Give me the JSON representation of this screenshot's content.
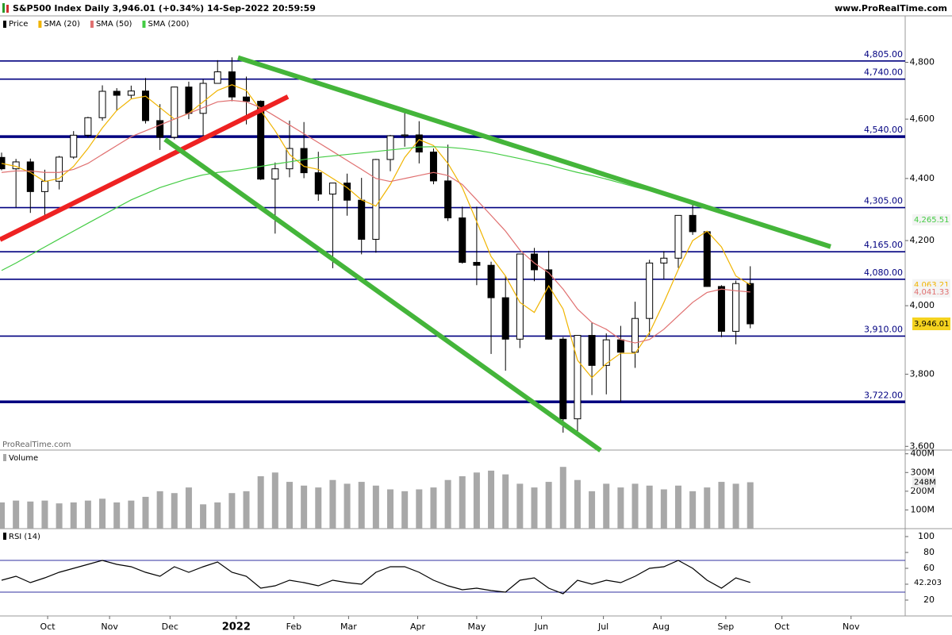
{
  "header": {
    "title": "S&P500 Index Daily 3,946.01 (+0.34%) 14-Sep-2022 20:59:59",
    "site": "www.ProRealTime.com"
  },
  "chart_data": [
    {
      "type": "candlestick",
      "log_scale": true,
      "watermark": "ProRealTime.com",
      "x": [
        0,
        1,
        2,
        3,
        4,
        5,
        6,
        7,
        8,
        9,
        10,
        11,
        12,
        13,
        14,
        15,
        16,
        17,
        18,
        19,
        20,
        21,
        22,
        23,
        24,
        25,
        26,
        27,
        28,
        29,
        30,
        31,
        32,
        33,
        34,
        35,
        36,
        37,
        38,
        39,
        40,
        41,
        42,
        43,
        44,
        45,
        46,
        47,
        48,
        49,
        50,
        51,
        52
      ],
      "xlim": [
        -0.11,
        62.76
      ],
      "ylim": [
        3590,
        4970
      ],
      "yticks": [
        {
          "value": 3600,
          "label": "3,600"
        },
        {
          "value": 3800,
          "label": "3,800"
        },
        {
          "value": 4000,
          "label": "4,000"
        },
        {
          "value": 4200,
          "label": "4,200"
        },
        {
          "value": 4400,
          "label": "4,400"
        },
        {
          "value": 4600,
          "label": "4,600"
        },
        {
          "value": 4800,
          "label": "4,800"
        }
      ],
      "series": [
        {
          "name": "Price",
          "color": "#000000",
          "last_label": "3,946.01",
          "open": [
            4470,
            4432,
            4455,
            4357,
            4391,
            4471,
            4545,
            4605,
            4697,
            4683,
            4698,
            4595,
            4538,
            4712,
            4620,
            4725,
            4766,
            4677,
            4662,
            4398,
            4432,
            4500,
            4419,
            4349,
            4385,
            4329,
            4204,
            4463,
            4543,
            4546,
            4488,
            4392,
            4272,
            4132,
            4123,
            4024,
            3901,
            4158,
            4109,
            3901,
            3675,
            3912,
            3825,
            3899,
            3863,
            3962,
            4130,
            4145,
            4280,
            4228,
            4058,
            3924,
            4067
          ],
          "high": [
            4486,
            4465,
            4466,
            4429,
            4475,
            4559,
            4608,
            4718,
            4708,
            4717,
            4744,
            4652,
            4713,
            4731,
            4740,
            4808,
            4818,
            4749,
            4665,
            4453,
            4595,
            4590,
            4489,
            4385,
            4416,
            4402,
            4465,
            4546,
            4637,
            4593,
            4500,
            4513,
            4308,
            4308,
            4134,
            4090,
            4158,
            4177,
            4168,
            3907,
            3913,
            3950,
            3918,
            3940,
            4012,
            4140,
            4167,
            4280,
            4325,
            4230,
            4062,
            4076,
            4120
          ],
          "low": [
            4427,
            4306,
            4288,
            4278,
            4364,
            4465,
            4537,
            4595,
            4630,
            4672,
            4585,
            4495,
            4531,
            4600,
            4532,
            4725,
            4662,
            4582,
            4395,
            4222,
            4404,
            4401,
            4327,
            4114,
            4279,
            4157,
            4162,
            4424,
            4506,
            4450,
            4381,
            4262,
            4128,
            4062,
            3858,
            3810,
            3875,
            4074,
            3900,
            3637,
            3640,
            3741,
            3743,
            3722,
            3818,
            3913,
            4080,
            4115,
            4218,
            4057,
            3907,
            3886,
            3933
          ],
          "close": [
            4432,
            4455,
            4357,
            4391,
            4471,
            4545,
            4605,
            4697,
            4683,
            4698,
            4595,
            4538,
            4712,
            4620,
            4725,
            4766,
            4677,
            4662,
            4398,
            4432,
            4500,
            4419,
            4349,
            4385,
            4329,
            4204,
            4463,
            4543,
            4546,
            4488,
            4392,
            4272,
            4132,
            4123,
            4024,
            3901,
            4158,
            4109,
            3901,
            3675,
            3912,
            3825,
            3899,
            3863,
            3962,
            4130,
            4145,
            4280,
            4228,
            4058,
            3924,
            4067,
            3946
          ]
        },
        {
          "name": "SMA (20)",
          "color": "#f0b400",
          "last_label": "4,063.21",
          "values": [
            4450,
            4440,
            4420,
            4390,
            4400,
            4440,
            4500,
            4570,
            4630,
            4670,
            4680,
            4640,
            4600,
            4620,
            4660,
            4700,
            4720,
            4700,
            4630,
            4560,
            4480,
            4440,
            4430,
            4400,
            4370,
            4330,
            4310,
            4380,
            4470,
            4530,
            4510,
            4450,
            4370,
            4260,
            4150,
            4090,
            4010,
            3980,
            4060,
            3990,
            3840,
            3790,
            3830,
            3860,
            3860,
            3920,
            4010,
            4110,
            4200,
            4230,
            4180,
            4090,
            4063.21
          ]
        },
        {
          "name": "SMA (50)",
          "color": "#e07070",
          "last_label": "4,041.33",
          "values": [
            4420,
            4425,
            4425,
            4420,
            4420,
            4430,
            4450,
            4480,
            4510,
            4540,
            4560,
            4580,
            4600,
            4620,
            4640,
            4660,
            4665,
            4660,
            4640,
            4610,
            4580,
            4550,
            4520,
            4490,
            4460,
            4430,
            4400,
            4390,
            4400,
            4410,
            4420,
            4410,
            4380,
            4330,
            4280,
            4230,
            4170,
            4130,
            4100,
            4050,
            3990,
            3950,
            3930,
            3900,
            3890,
            3900,
            3930,
            3970,
            4010,
            4040,
            4050,
            4045,
            4041.33
          ]
        },
        {
          "name": "SMA (200)",
          "color": "#44cc44",
          "last_label": "4,265.51",
          "values": [
            4107,
            4130,
            4155,
            4180,
            4205,
            4230,
            4255,
            4280,
            4305,
            4330,
            4350,
            4370,
            4385,
            4400,
            4412,
            4420,
            4425,
            4432,
            4440,
            4448,
            4455,
            4463,
            4470,
            4475,
            4480,
            4485,
            4490,
            4495,
            4500,
            4505,
            4506,
            4504,
            4500,
            4494,
            4486,
            4476,
            4466,
            4455,
            4445,
            4432,
            4420,
            4410,
            4398,
            4385,
            4372,
            4360,
            4348,
            4335,
            4322,
            4308,
            4293,
            4280,
            4265.51
          ]
        }
      ],
      "levels_color": "#000080",
      "levels": [
        {
          "value": 4805,
          "label": "4,805.00"
        },
        {
          "value": 4740,
          "label": "4,740.00"
        },
        {
          "value": 4540,
          "label": "4,540.00",
          "thick": true
        },
        {
          "value": 4305,
          "label": "4,305.00"
        },
        {
          "value": 4165,
          "label": "4,165.00"
        },
        {
          "value": 4080,
          "label": "4,080.00"
        },
        {
          "value": 3910,
          "label": "3,910.00"
        },
        {
          "value": 3722,
          "label": "3,722.00",
          "thick": true
        }
      ],
      "trendlines": [
        {
          "from": [
            16.42,
            4817
          ],
          "to": [
            57.58,
            4181
          ],
          "color": "#44b53a"
        },
        {
          "from": [
            -0.11,
            4203
          ],
          "to": [
            19.89,
            4678
          ],
          "color": "#ee2222"
        },
        {
          "from": [
            11.35,
            4531
          ],
          "to": [
            41.6,
            3589
          ],
          "color": "#44b53a"
        }
      ]
    },
    {
      "type": "bar",
      "xlim": [
        -0.11,
        62.76
      ],
      "ylim": [
        0,
        420
      ],
      "yticks": [
        {
          "value": 100,
          "label": "100M"
        },
        {
          "value": 200,
          "label": "200M"
        },
        {
          "value": 300,
          "label": "300M"
        },
        {
          "value": 400,
          "label": "400M"
        }
      ],
      "series": [
        {
          "name": "Volume",
          "color": "#a8a8a8",
          "last_label": "248M",
          "values": [
            140,
            150,
            145,
            150,
            135,
            140,
            150,
            160,
            140,
            150,
            170,
            200,
            190,
            220,
            130,
            140,
            190,
            200,
            280,
            300,
            250,
            230,
            220,
            260,
            240,
            250,
            230,
            210,
            200,
            210,
            220,
            260,
            280,
            300,
            310,
            290,
            240,
            220,
            250,
            330,
            260,
            200,
            240,
            220,
            240,
            230,
            210,
            230,
            200,
            220,
            250,
            240,
            248
          ]
        }
      ]
    },
    {
      "type": "line",
      "xlim": [
        -0.11,
        62.76
      ],
      "ylim": [
        0,
        110
      ],
      "yticks": [
        20,
        40,
        60,
        80,
        100
      ],
      "levels": [
        30,
        70
      ],
      "levels_color": "#3030a0",
      "series": [
        {
          "name": "RSI (14)",
          "color": "#000000",
          "last_label": "42.203",
          "values": [
            45,
            50,
            42,
            48,
            55,
            60,
            65,
            70,
            65,
            62,
            55,
            50,
            62,
            55,
            62,
            68,
            55,
            50,
            35,
            38,
            45,
            42,
            38,
            45,
            42,
            40,
            55,
            62,
            62,
            55,
            45,
            38,
            33,
            35,
            32,
            30,
            45,
            48,
            35,
            28,
            45,
            40,
            45,
            42,
            50,
            60,
            62,
            70,
            60,
            45,
            35,
            48,
            42.203
          ]
        }
      ],
      "xticks": [
        {
          "value": 3.2,
          "label": "Oct"
        },
        {
          "value": 7.5,
          "label": "Nov"
        },
        {
          "value": 11.7,
          "label": "Dec"
        },
        {
          "value": 16.3,
          "label": "2022"
        },
        {
          "value": 20.3,
          "label": "Feb"
        },
        {
          "value": 24.1,
          "label": "Mar"
        },
        {
          "value": 28.9,
          "label": "Apr"
        },
        {
          "value": 33.0,
          "label": "May"
        },
        {
          "value": 37.5,
          "label": "Jun"
        },
        {
          "value": 41.8,
          "label": "Jul"
        },
        {
          "value": 45.8,
          "label": "Aug"
        },
        {
          "value": 50.3,
          "label": "Sep"
        },
        {
          "value": 54.2,
          "label": "Oct"
        },
        {
          "value": 59.0,
          "label": "Nov"
        }
      ]
    }
  ]
}
